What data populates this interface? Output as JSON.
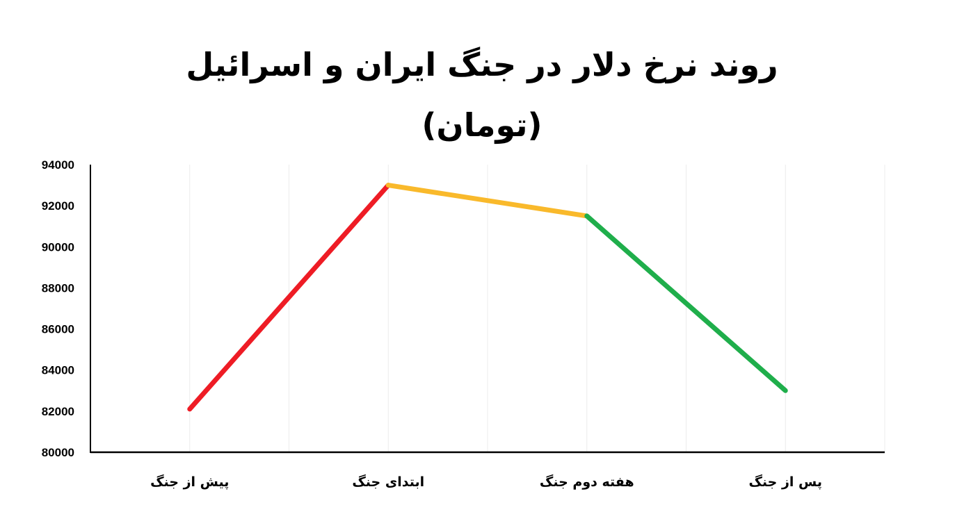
{
  "chart_data": {
    "type": "line",
    "title": "روند نرخ دلار در جنگ ایران و اسرائیل",
    "subtitle": "(تومان)",
    "categories": [
      "پیش از جنگ",
      "ابتدای جنگ",
      "هفته دوم جنگ",
      "پس از جنگ"
    ],
    "series": [
      {
        "values": [
          82100,
          93000,
          91500,
          83000
        ]
      }
    ],
    "segment_colors": [
      "#ee1c25",
      "#f9b92b",
      "#1fae4b"
    ],
    "ylim": [
      80000,
      94000
    ],
    "yticks": [
      80000,
      82000,
      84000,
      86000,
      88000,
      90000,
      92000,
      94000
    ],
    "xlabel": "",
    "ylabel": "",
    "grid": "vertical"
  }
}
